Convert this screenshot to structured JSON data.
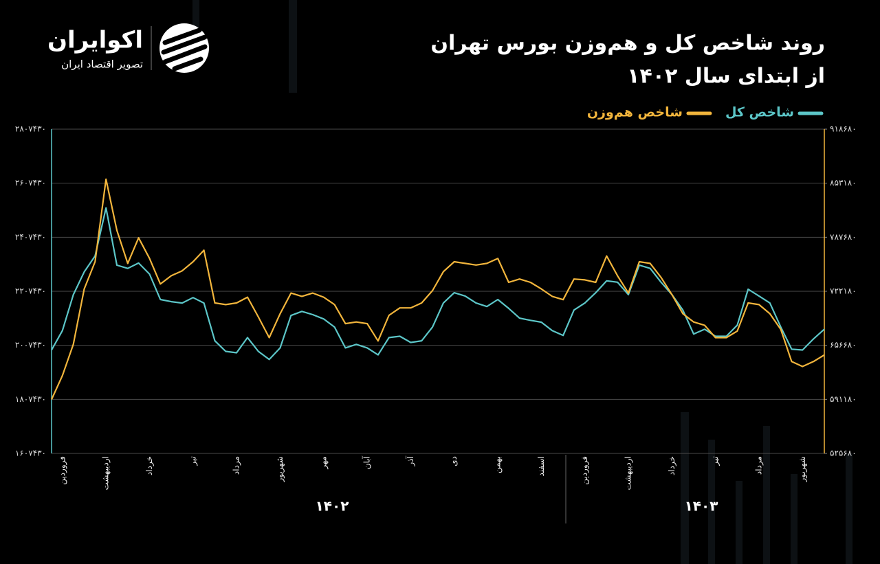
{
  "logo": {
    "name": "اکوایران",
    "tagline": "تصویر اقتصاد ایران"
  },
  "chart_data": {
    "type": "line",
    "title": "روند شاخص کل و هم‌وزن بورس تهران",
    "subtitle": "از ابتدای سال ۱۴۰۲",
    "annotations": [
      "۱۴۰۲",
      "۱۴۰۳"
    ],
    "categories": [
      null,
      "فروردین",
      null,
      null,
      null,
      "اردیبهشت",
      null,
      null,
      null,
      "خرداد",
      null,
      null,
      null,
      "تیر",
      null,
      null,
      null,
      "مرداد",
      null,
      null,
      null,
      "شهریور",
      null,
      null,
      null,
      "مهر",
      null,
      null,
      null,
      "آبان",
      null,
      null,
      null,
      "آذر",
      null,
      null,
      null,
      "دی",
      null,
      null,
      null,
      "بهمن",
      null,
      null,
      null,
      "اسفند",
      null,
      null,
      null,
      "فروردین",
      null,
      null,
      null,
      "اردیبهشت",
      null,
      null,
      null,
      "خرداد",
      null,
      null,
      null,
      "تیر",
      null,
      null,
      null,
      "مرداد",
      null,
      null,
      null,
      "شهریور",
      null,
      null
    ],
    "series": [
      {
        "name": "شاخص کل",
        "color": "#5cc6c8",
        "axis": "y",
        "values": [
          1990000,
          2062000,
          2195000,
          2279000,
          2338000,
          2516000,
          2304000,
          2292000,
          2312000,
          2271000,
          2177000,
          2169000,
          2164000,
          2184000,
          2164000,
          2024000,
          1985000,
          1980000,
          2036000,
          1985000,
          1955000,
          1998000,
          2118000,
          2133000,
          2121000,
          2105000,
          2075000,
          1998000,
          2011000,
          1998000,
          1972000,
          2036000,
          2041000,
          2018000,
          2024000,
          2075000,
          2164000,
          2202000,
          2190000,
          2164000,
          2151000,
          2177000,
          2144000,
          2108000,
          2100000,
          2093000,
          2062000,
          2044000,
          2138000,
          2164000,
          2202000,
          2246000,
          2241000,
          2195000,
          2304000,
          2292000,
          2241000,
          2195000,
          2138000,
          2049000,
          2067000,
          2041000,
          2041000,
          2082000,
          2215000,
          2190000,
          2164000,
          2075000,
          1993000,
          1990000,
          2031000,
          2067000
        ]
      },
      {
        "name": "شاخص هم‌وزن",
        "color": "#f2b53c",
        "axis": "y2",
        "values": [
          591000,
          620000,
          658000,
          725000,
          758000,
          858000,
          796000,
          756000,
          787000,
          762000,
          731000,
          741000,
          747000,
          758000,
          772000,
          708000,
          706000,
          708000,
          715000,
          691000,
          666000,
          695000,
          720000,
          716000,
          720000,
          715000,
          706000,
          683000,
          685000,
          683000,
          662000,
          693000,
          702000,
          702000,
          708000,
          723000,
          746000,
          758000,
          756000,
          754000,
          756000,
          762000,
          733000,
          737000,
          733000,
          725000,
          716000,
          712000,
          737000,
          736000,
          733000,
          765000,
          741000,
          720000,
          758000,
          756000,
          739000,
          718000,
          695000,
          685000,
          681000,
          666000,
          666000,
          674000,
          708000,
          706000,
          695000,
          676000,
          637000,
          631000,
          637000,
          645000
        ]
      }
    ],
    "ylim": [
      1607430,
      2807430
    ],
    "yticks": [
      {
        "value": 1607430,
        "label": "۱۶۰۷۴۳۰"
      },
      {
        "value": 1807430,
        "label": "۱۸۰۷۴۳۰"
      },
      {
        "value": 2007430,
        "label": "۲۰۰۷۴۳۰"
      },
      {
        "value": 2207430,
        "label": "۲۲۰۷۴۳۰"
      },
      {
        "value": 2407430,
        "label": "۲۴۰۷۴۳۰"
      },
      {
        "value": 2607430,
        "label": "۲۶۰۷۴۳۰"
      },
      {
        "value": 2807430,
        "label": "۲۸۰۷۴۳۰"
      }
    ],
    "y2lim": [
      525680,
      918680
    ],
    "y2ticks": [
      {
        "value": 525680,
        "label": "۵۲۵۶۸۰"
      },
      {
        "value": 591180,
        "label": "۵۹۱۱۸۰"
      },
      {
        "value": 656680,
        "label": "۶۵۶۶۸۰"
      },
      {
        "value": 722180,
        "label": "۷۲۲۱۸۰"
      },
      {
        "value": 787680,
        "label": "۷۸۷۶۸۰"
      },
      {
        "value": 853180,
        "label": "۸۵۳۱۸۰"
      },
      {
        "value": 918680,
        "label": "۹۱۸۶۸۰"
      }
    ],
    "grid": true,
    "legend": "top-right"
  }
}
